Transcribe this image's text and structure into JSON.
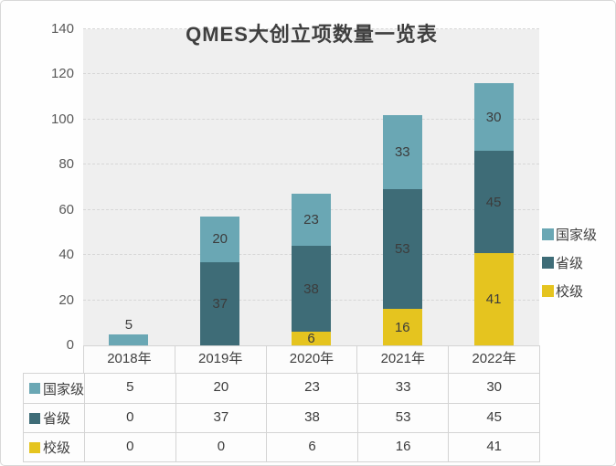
{
  "chart_data": {
    "type": "bar",
    "stacked": true,
    "title": "QMES大创立项数量一览表",
    "categories": [
      "2018年",
      "2019年",
      "2020年",
      "2021年",
      "2022年"
    ],
    "series": [
      {
        "name": "校级",
        "color": "#e5c41f",
        "values": [
          0,
          0,
          6,
          16,
          41
        ]
      },
      {
        "name": "省级",
        "color": "#3e6c77",
        "values": [
          0,
          37,
          38,
          53,
          45
        ]
      },
      {
        "name": "国家级",
        "color": "#6aa7b4",
        "values": [
          5,
          20,
          23,
          33,
          30
        ]
      }
    ],
    "ylabel": "",
    "xlabel": "",
    "ylim": [
      0,
      140
    ],
    "ytick_step": 20,
    "grid": true,
    "gridline_style": "dashed",
    "legend_position": "right",
    "legend_order": [
      "国家级",
      "省级",
      "校级"
    ],
    "plot_background": "#efefef"
  },
  "data_table": {
    "rows": [
      {
        "name": "国家级",
        "color": "#6aa7b4",
        "values": [
          5,
          20,
          23,
          33,
          30
        ]
      },
      {
        "name": "省级",
        "color": "#3e6c77",
        "values": [
          0,
          37,
          38,
          53,
          45
        ]
      },
      {
        "name": "校级",
        "color": "#e5c41f",
        "values": [
          0,
          0,
          6,
          16,
          41
        ]
      }
    ]
  }
}
